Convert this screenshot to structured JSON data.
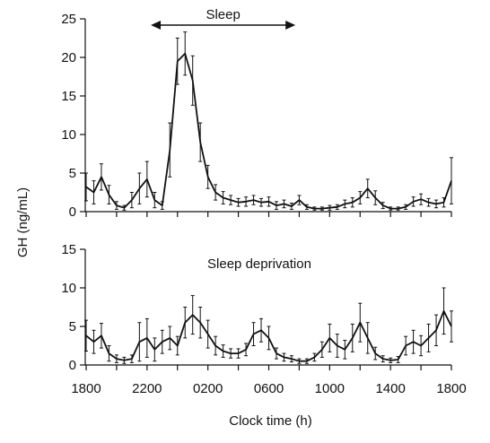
{
  "chart_data": [
    {
      "type": "line",
      "panel": "top",
      "annotation": "Sleep",
      "annotation_range": [
        "2215",
        "0745"
      ],
      "ylim": [
        0,
        25
      ],
      "yticks": [
        0,
        5,
        10,
        15,
        20,
        25
      ],
      "error_bars": true,
      "series": [
        {
          "x": [
            "1800",
            "1830",
            "1900",
            "1930",
            "2000",
            "2030",
            "2100",
            "2130",
            "2200",
            "2230",
            "2300",
            "2330",
            "0000",
            "0030",
            "0100",
            "0130",
            "0200",
            "0230",
            "0300",
            "0330",
            "0400",
            "0430",
            "0500",
            "0530",
            "0600",
            "0630",
            "0700",
            "0730",
            "0800",
            "0830",
            "0900",
            "0930",
            "1000",
            "1030",
            "1100",
            "1130",
            "1200",
            "1230",
            "1300",
            "1330",
            "1400",
            "1430",
            "1500",
            "1530",
            "1600",
            "1630",
            "1700",
            "1730",
            "1800"
          ],
          "y": [
            3.2,
            2.5,
            4.5,
            2.2,
            0.8,
            0.5,
            1.5,
            3.0,
            4.2,
            1.5,
            0.8,
            8.0,
            19.5,
            20.5,
            17.0,
            9.0,
            4.5,
            2.5,
            1.8,
            1.5,
            1.2,
            1.3,
            1.5,
            1.2,
            1.3,
            0.8,
            1.0,
            0.7,
            1.5,
            0.6,
            0.4,
            0.4,
            0.5,
            0.6,
            1.0,
            1.2,
            1.8,
            3.0,
            1.8,
            0.8,
            0.4,
            0.4,
            0.6,
            1.3,
            1.6,
            1.2,
            1.0,
            1.2,
            4.0
          ],
          "err": [
            1.8,
            1.5,
            1.7,
            1.2,
            0.5,
            0.3,
            1.0,
            2.0,
            2.3,
            1.0,
            0.5,
            3.5,
            3.0,
            2.8,
            3.2,
            2.5,
            1.5,
            1.0,
            0.8,
            0.6,
            0.5,
            0.6,
            0.6,
            0.5,
            0.6,
            0.5,
            0.5,
            0.4,
            0.6,
            0.3,
            0.2,
            0.2,
            0.3,
            0.3,
            0.5,
            0.6,
            0.8,
            1.2,
            0.9,
            0.4,
            0.2,
            0.2,
            0.3,
            0.6,
            0.7,
            0.5,
            0.5,
            0.6,
            3.0
          ]
        }
      ]
    },
    {
      "type": "line",
      "panel": "bottom",
      "annotation": "Sleep deprivation",
      "ylim": [
        0,
        15
      ],
      "yticks": [
        0,
        5,
        10,
        15
      ],
      "error_bars": true,
      "series": [
        {
          "x": [
            "1800",
            "1830",
            "1900",
            "1930",
            "2000",
            "2030",
            "2100",
            "2130",
            "2200",
            "2230",
            "2300",
            "2330",
            "0000",
            "0030",
            "0100",
            "0130",
            "0200",
            "0230",
            "0300",
            "0330",
            "0400",
            "0430",
            "0500",
            "0530",
            "0600",
            "0630",
            "0700",
            "0730",
            "0800",
            "0830",
            "0900",
            "0930",
            "1000",
            "1030",
            "1100",
            "1130",
            "1200",
            "1230",
            "1300",
            "1330",
            "1400",
            "1430",
            "1500",
            "1530",
            "1600",
            "1630",
            "1700",
            "1730",
            "1800"
          ],
          "y": [
            3.8,
            3.0,
            3.8,
            1.5,
            0.8,
            0.6,
            0.8,
            3.0,
            3.5,
            2.0,
            3.0,
            3.5,
            2.5,
            5.5,
            6.5,
            5.5,
            4.0,
            2.5,
            1.8,
            1.5,
            1.5,
            2.0,
            4.0,
            4.5,
            3.5,
            1.5,
            1.0,
            0.8,
            0.5,
            0.5,
            1.0,
            2.0,
            3.5,
            2.5,
            2.0,
            3.5,
            5.5,
            3.5,
            1.5,
            0.8,
            0.6,
            0.7,
            2.5,
            3.0,
            2.5,
            3.5,
            4.5,
            7.0,
            5.0
          ],
          "err": [
            2.0,
            1.5,
            1.6,
            1.0,
            0.5,
            0.4,
            0.5,
            2.5,
            2.5,
            1.5,
            1.5,
            1.5,
            1.2,
            2.0,
            2.5,
            2.0,
            1.8,
            1.2,
            0.8,
            0.6,
            0.6,
            0.8,
            1.5,
            1.5,
            1.5,
            0.7,
            0.5,
            0.4,
            0.3,
            0.3,
            0.5,
            1.0,
            1.8,
            1.5,
            1.2,
            1.8,
            2.5,
            2.0,
            0.8,
            0.4,
            0.3,
            0.4,
            1.2,
            1.5,
            1.3,
            1.8,
            2.0,
            3.0,
            2.0
          ]
        }
      ]
    }
  ],
  "xticks": [
    "1800",
    "2200",
    "0200",
    "0600",
    "1000",
    "1400",
    "1800"
  ],
  "xlabel": "Clock time (h)",
  "ylabel": "GH (ng/mL)"
}
